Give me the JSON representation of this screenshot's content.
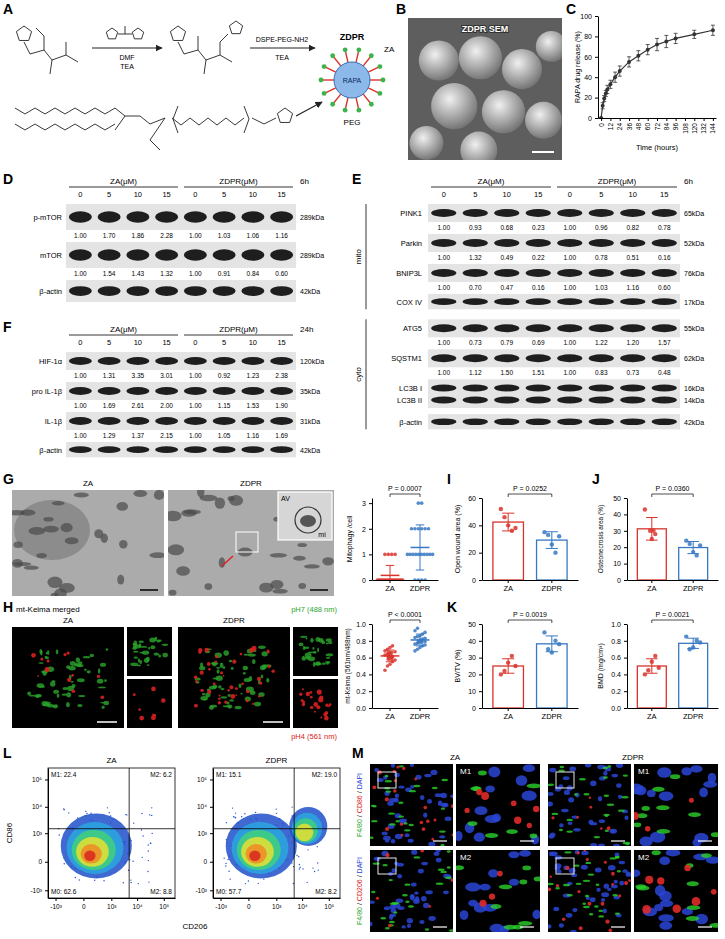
{
  "scheme": {
    "panel": "A",
    "step1": [
      "DMF",
      "TEA"
    ],
    "step2": [
      "DSPE-PEG-NH2",
      "TEA"
    ],
    "product": "ZDPR",
    "core": "RAPA",
    "ligand": "ZA",
    "shell": "PEG"
  },
  "sem": {
    "panel": "B",
    "title": "ZDPR SEM"
  },
  "chart_data": [
    {
      "panel": "C",
      "type": "line",
      "x_label": "Time (hours)",
      "y_label": "RAPA drug release (%)",
      "x": [
        0,
        2,
        4,
        6,
        8,
        12,
        18,
        24,
        36,
        48,
        60,
        72,
        84,
        96,
        120,
        144
      ],
      "values": [
        0,
        12,
        19,
        24,
        28,
        33,
        40,
        46,
        55,
        61,
        67,
        72,
        75,
        78,
        82,
        86
      ],
      "errors": [
        0,
        3,
        3,
        3,
        4,
        4,
        5,
        5,
        5,
        5,
        5,
        6,
        6,
        5,
        4,
        5
      ],
      "xlim": [
        -4,
        148
      ],
      "ylim": [
        0,
        100
      ],
      "xticks": [
        0,
        12,
        24,
        36,
        48,
        60,
        72,
        84,
        96,
        108,
        120,
        132,
        144
      ],
      "yticks": [
        0,
        20,
        40,
        60,
        80,
        100
      ],
      "color": "#333333",
      "marker": "circle"
    },
    {
      "type": "dot",
      "y_label": "Mitophagy /cell",
      "categories": [
        "ZA",
        "ZDPR"
      ],
      "values": [
        0.18,
        1.27
      ],
      "errors": [
        0.39,
        0.88
      ],
      "points": [
        [
          0,
          0,
          0,
          0,
          0,
          0,
          0,
          0,
          0,
          0,
          0,
          0,
          0,
          0,
          0,
          0,
          0,
          0,
          1,
          1,
          1,
          1
        ],
        [
          0,
          0,
          0,
          0,
          1,
          1,
          1,
          1,
          1,
          1,
          1,
          1,
          1,
          1,
          2,
          2,
          2,
          2,
          2,
          2,
          3,
          3
        ]
      ],
      "colors": [
        "#d9342b",
        "#3778c2"
      ],
      "ylim": [
        0,
        3.2
      ],
      "yticks": [
        0,
        1,
        2,
        3
      ],
      "annotation": "P = 0.0007"
    },
    {
      "type": "dot",
      "y_label": "mt-Keima (561nm/488nm)",
      "categories": [
        "ZA",
        "ZDPR"
      ],
      "values": [
        0.62,
        0.81
      ],
      "errors": [
        0.07,
        0.07
      ],
      "points": [
        [
          0.45,
          0.5,
          0.52,
          0.55,
          0.57,
          0.58,
          0.6,
          0.6,
          0.61,
          0.62,
          0.63,
          0.64,
          0.65,
          0.66,
          0.67,
          0.68,
          0.7,
          0.72,
          0.74,
          0.58,
          0.62,
          0.66
        ],
        [
          0.68,
          0.7,
          0.72,
          0.74,
          0.75,
          0.76,
          0.77,
          0.78,
          0.78,
          0.79,
          0.8,
          0.8,
          0.81,
          0.82,
          0.83,
          0.84,
          0.85,
          0.86,
          0.88,
          0.9,
          0.92,
          0.95
        ]
      ],
      "colors": [
        "#d9342b",
        "#3778c2"
      ],
      "ylim": [
        0,
        1
      ],
      "yticks": [
        {
          "value": 0,
          "label": "0.0"
        },
        0.2,
        0.4,
        0.6,
        0.8,
        {
          "value": 1,
          "label": "1.0"
        }
      ],
      "annotation": "P < 0.0001"
    },
    {
      "panel": "I",
      "type": "bar",
      "y_label": "Open wound area (%)",
      "categories": [
        "ZA",
        "ZDPR"
      ],
      "values": [
        42.4,
        29.2
      ],
      "errors": [
        6.5,
        6.1
      ],
      "points": [
        [
          52,
          46,
          40,
          36,
          38
        ],
        [
          35,
          33,
          26,
          20,
          32
        ]
      ],
      "colors": [
        "#d9342b",
        "#3778c2"
      ],
      "ylim": [
        0,
        60
      ],
      "yticks": [
        0,
        20,
        40,
        60
      ],
      "annotation": "P = 0.0252"
    },
    {
      "panel": "J",
      "type": "bar",
      "y_label": "Osteonecrosis area (%)",
      "categories": [
        "ZA",
        "ZDPR"
      ],
      "values": [
        31.2,
        19.8
      ],
      "errors": [
        6.9,
        3.7
      ],
      "points": [
        [
          43,
          30,
          25,
          28,
          30
        ],
        [
          24,
          22,
          17,
          15,
          21
        ]
      ],
      "colors": [
        "#d9342b",
        "#3778c2"
      ],
      "ylim": [
        0,
        50
      ],
      "yticks": [
        0,
        10,
        20,
        30,
        40,
        50
      ],
      "annotation": "P = 0.0360"
    },
    {
      "panel": "K",
      "type": "bar",
      "y_label": "BV/TV (%)",
      "categories": [
        "ZA",
        "ZDPR"
      ],
      "values": [
        25,
        38.2
      ],
      "errors": [
        4.3,
        4.7
      ],
      "points": [
        [
          20,
          22,
          27,
          31,
          25
        ],
        [
          45,
          35,
          33,
          40,
          38
        ]
      ],
      "colors": [
        "#d9342b",
        "#3778c2"
      ],
      "ylim": [
        0,
        50
      ],
      "yticks": [
        0,
        10,
        20,
        30,
        40,
        50
      ],
      "annotation": "P = 0.0019"
    },
    {
      "type": "bar",
      "y_label": "BMD (mg/cm³)",
      "categories": [
        "ZA",
        "ZDPR"
      ],
      "values": [
        0.5,
        0.77
      ],
      "errors": [
        0.086,
        0.061
      ],
      "points": [
        [
          0.4,
          0.45,
          0.55,
          0.62,
          0.48
        ],
        [
          0.85,
          0.7,
          0.72,
          0.8,
          0.78
        ]
      ],
      "colors": [
        "#d9342b",
        "#3778c2"
      ],
      "ylim": [
        0,
        1
      ],
      "yticks": [
        {
          "value": 0,
          "label": "0.0"
        },
        0.2,
        0.4,
        0.6,
        0.8,
        {
          "value": 1,
          "label": "1.0"
        }
      ],
      "annotation": "P = 0.0021"
    }
  ],
  "blots": [
    {
      "panel": "D",
      "time": "6h",
      "groups": [
        "ZA(μM)",
        "ZDPR(μM)"
      ],
      "conc": [
        0,
        5,
        10,
        15
      ],
      "rows": [
        {
          "name": "p-mTOR",
          "kda": "289kDa",
          "values": [
            "1.00",
            "1.70",
            "1.86",
            "2.28",
            "1.00",
            "1.03",
            "1.06",
            "1.16"
          ]
        },
        {
          "name": "mTOR",
          "kda": "289kDa",
          "values": [
            "1.00",
            "1.54",
            "1.43",
            "1.32",
            "1.00",
            "0.91",
            "0.84",
            "0.60"
          ]
        },
        {
          "name": "β-actin",
          "kda": "42kDa"
        }
      ]
    },
    {
      "panel": "E",
      "time": "6h",
      "groups": [
        "ZA(μM)",
        "ZDPR(μM)"
      ],
      "conc": [
        0,
        5,
        10,
        15
      ],
      "sections": [
        {
          "name": "mito",
          "rows": [
            {
              "name": "PINK1",
              "kda": "65kDa",
              "values": [
                "1.00",
                "0.93",
                "0.68",
                "0.23",
                "1.00",
                "0.96",
                "0.82",
                "0.78"
              ]
            },
            {
              "name": "Parkin",
              "kda": "52kDa",
              "values": [
                "1.00",
                "1.32",
                "0.49",
                "0.22",
                "1.00",
                "0.78",
                "0.51",
                "0.16"
              ]
            },
            {
              "name": "BNIP3L",
              "kda": "76kDa",
              "values": [
                "1.00",
                "0.70",
                "0.47",
                "0.16",
                "1.00",
                "1.03",
                "1.16",
                "0.60"
              ]
            },
            {
              "name": "COX IV",
              "kda": "17kDa"
            }
          ]
        },
        {
          "name": "cyto",
          "rows": [
            {
              "name": "ATG5",
              "kda": "55kDa",
              "values": [
                "1.00",
                "0.73",
                "0.79",
                "0.69",
                "1.00",
                "1.22",
                "1.20",
                "1.57"
              ]
            },
            {
              "name": "SQSTM1",
              "kda": "62kDa",
              "values": [
                "1.00",
                "1.12",
                "1.50",
                "1.51",
                "1.00",
                "0.83",
                "0.73",
                "0.48"
              ]
            },
            {
              "name": [
                "LC3B I",
                "LC3B II"
              ],
              "kda": [
                "16kDa",
                "14kDa"
              ]
            },
            {
              "name": "β-actin",
              "kda": "42kDa"
            }
          ]
        }
      ]
    },
    {
      "panel": "F",
      "time": "24h",
      "groups": [
        "ZA(μM)",
        "ZDPR(μM)"
      ],
      "conc": [
        0,
        5,
        10,
        15
      ],
      "rows": [
        {
          "name": "HIF-1α",
          "kda": "120kDa",
          "values": [
            "1.00",
            "1.31",
            "3.35",
            "3.01",
            "1.00",
            "0.92",
            "1.23",
            "2.38"
          ]
        },
        {
          "name": "pro IL-1β",
          "kda": "35kDa",
          "values": [
            "1.00",
            "1.69",
            "2.61",
            "2.00",
            "1.00",
            "1.15",
            "1.53",
            "1.90"
          ]
        },
        {
          "name": "IL-1β",
          "kda": "31kDa",
          "values": [
            "1.00",
            "1.29",
            "1.37",
            "2.15",
            "1.00",
            "1.05",
            "1.16",
            "1.69"
          ]
        },
        {
          "name": "β-actin",
          "kda": "42kDa"
        }
      ]
    }
  ],
  "tem": {
    "panel": "G",
    "titles": [
      "ZA",
      "ZDPR"
    ],
    "inset_labels": [
      "AV",
      "mi"
    ]
  },
  "keima": {
    "panel": "H",
    "title": "mt-Keima merged",
    "titles": [
      "ZA",
      "ZDPR"
    ],
    "channels": [
      {
        "text": "pH7 (488 nm)",
        "color": "#2aa52a"
      },
      {
        "text": "pH4 (561 nm)",
        "color": "#d92020"
      }
    ]
  },
  "flow": {
    "panel": "L",
    "x_label": "CD206",
    "y_label": "CD86",
    "log": true,
    "xlim": [
      -2000,
      262144
    ],
    "ylim": [
      -2000,
      262144
    ],
    "xticks": [
      {
        "value": -1000,
        "label": "-10³"
      },
      0,
      {
        "value": 1000,
        "label": "10³"
      },
      {
        "value": 10000,
        "label": "10⁴"
      },
      {
        "value": 100000,
        "label": "10⁵"
      }
    ],
    "yticks": [
      {
        "value": -1000,
        "label": "-10³"
      },
      0,
      {
        "value": 1000,
        "label": "10³"
      },
      {
        "value": 10000,
        "label": "10⁴"
      },
      {
        "value": 100000,
        "label": "10⁵"
      }
    ],
    "gates": {
      "x": 5000,
      "y": 1500
    },
    "plots": [
      {
        "title": "ZA",
        "quadrants": [
          "M1: 22.4",
          "M2: 6.2",
          "M0: 62.6",
          "M2: 8.8"
        ]
      },
      {
        "title": "ZDPR",
        "quadrants": [
          "M1: 15.1",
          "M2: 19.0",
          "M0: 57.7",
          "M2: 8.2"
        ]
      }
    ]
  },
  "immuno": {
    "panel": "M",
    "titles": [
      "ZA",
      "ZDPR"
    ],
    "rows": [
      {
        "stains": [
          "F4/80",
          "/",
          "CD86",
          "/",
          "DAPI"
        ],
        "colors": [
          "#2aa52a",
          "#000000",
          "#d92020",
          "#000000",
          "#2a45d6"
        ],
        "inset": "M1"
      },
      {
        "stains": [
          "F4/80",
          "/",
          "CD206",
          "/",
          "DAPI"
        ],
        "colors": [
          "#2aa52a",
          "#000000",
          "#d92020",
          "#000000",
          "#2a45d6"
        ],
        "inset": "M2"
      }
    ]
  }
}
